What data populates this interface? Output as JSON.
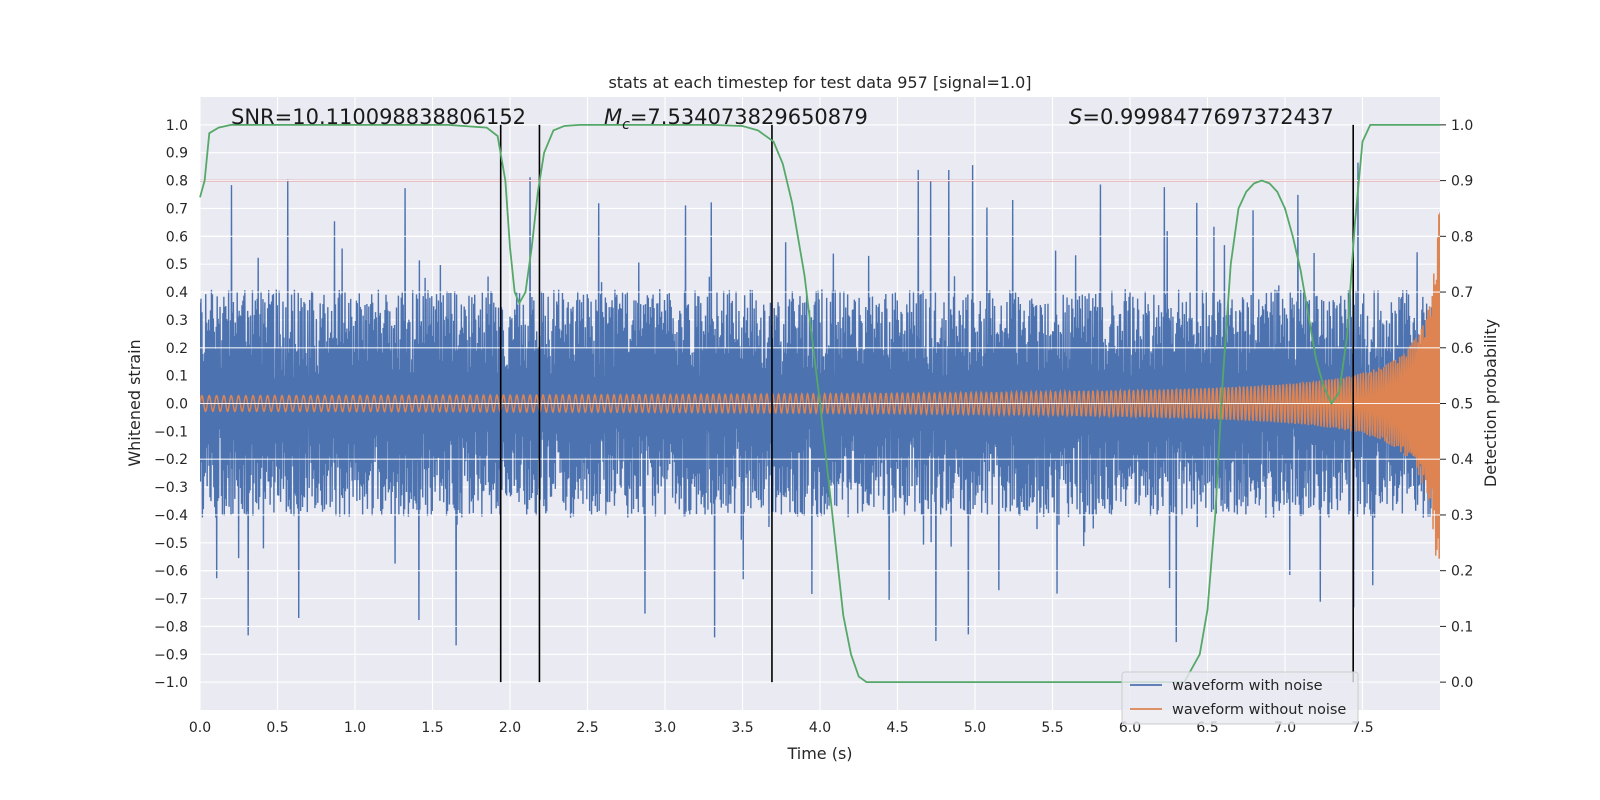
{
  "chart_data": {
    "type": "line",
    "title": "stats at each timestep for test data 957 [signal=1.0]",
    "xlabel": "Time (s)",
    "ylabel": "Whitened strain",
    "y2label": "Detection probability",
    "xlim": [
      0.0,
      8.0
    ],
    "ylim": [
      -1.1,
      1.1
    ],
    "y2lim": [
      -0.05,
      1.05
    ],
    "xticks": [
      0.0,
      0.5,
      1.0,
      1.5,
      2.0,
      2.5,
      3.0,
      3.5,
      4.0,
      4.5,
      5.0,
      5.5,
      6.0,
      6.5,
      7.0,
      7.5
    ],
    "xtick_labels": [
      "0.0",
      "0.5",
      "1.0",
      "1.5",
      "2.0",
      "2.5",
      "3.0",
      "3.5",
      "4.0",
      "4.5",
      "5.0",
      "5.5",
      "6.0",
      "6.5",
      "7.0",
      "7.5"
    ],
    "yticks": [
      1.0,
      0.9,
      0.8,
      0.7,
      0.6,
      0.5,
      0.4,
      0.3,
      0.2,
      0.1,
      0.0,
      -0.1,
      -0.2,
      -0.3,
      -0.4,
      -0.5,
      -0.6,
      -0.7,
      -0.8,
      -0.9,
      -1.0
    ],
    "ytick_labels": [
      "1.0",
      "0.9",
      "0.8",
      "0.7",
      "0.6",
      "0.5",
      "0.4",
      "0.3",
      "0.2",
      "0.1",
      "0.0",
      "−0.1",
      "−0.2",
      "−0.3",
      "−0.4",
      "−0.5",
      "−0.6",
      "−0.7",
      "−0.8",
      "−0.9",
      "−1.0"
    ],
    "y2ticks": [
      1.0,
      0.9,
      0.8,
      0.7,
      0.6,
      0.5,
      0.4,
      0.3,
      0.2,
      0.1,
      0.0
    ],
    "y2tick_labels": [
      "1.0",
      "0.9",
      "0.8",
      "0.7",
      "0.6",
      "0.5",
      "0.4",
      "0.3",
      "0.2",
      "0.1",
      "0.0"
    ],
    "annotations": {
      "snr": "SNR=10.110098838806152",
      "mc_symbol": "M",
      "mc_sub": "c",
      "mc_value": "=7.534073829650879",
      "s_symbol": "S",
      "s_value": "=0.9998477697372437"
    },
    "threshold_line": {
      "y2": 0.9,
      "color": "#c44e52"
    },
    "vertical_markers_s": [
      1.94,
      2.19,
      3.69,
      7.44
    ],
    "series": [
      {
        "name": "waveform with noise",
        "color": "#4c72b0",
        "style": "dense noise, envelope ~0.4, spikes to ~0.85",
        "t_range": [
          0.0,
          8.0
        ]
      },
      {
        "name": "waveform without noise",
        "color": "#dd8452",
        "style": "chirp, amplitude 0.02 rising to ~0.8 at 8.0 s",
        "t_range": [
          0.0,
          8.0
        ]
      },
      {
        "name": "detection probability",
        "axis": "right",
        "color": "#55a868",
        "t": [
          0.0,
          0.03,
          0.06,
          0.12,
          0.2,
          0.4,
          0.8,
          1.2,
          1.6,
          1.85,
          1.92,
          1.97,
          2.0,
          2.03,
          2.06,
          2.1,
          2.14,
          2.18,
          2.22,
          2.28,
          2.35,
          2.45,
          2.55,
          2.7,
          3.0,
          3.3,
          3.5,
          3.6,
          3.7,
          3.76,
          3.82,
          3.9,
          4.0,
          4.08,
          4.15,
          4.2,
          4.25,
          4.3,
          4.4,
          5.0,
          5.6,
          6.1,
          6.35,
          6.45,
          6.5,
          6.55,
          6.6,
          6.65,
          6.7,
          6.75,
          6.8,
          6.85,
          6.9,
          6.95,
          7.0,
          7.05,
          7.1,
          7.15,
          7.2,
          7.25,
          7.3,
          7.35,
          7.4,
          7.45,
          7.5,
          7.55,
          7.6,
          7.7,
          7.8,
          8.0
        ],
        "p": [
          0.87,
          0.9,
          0.985,
          0.995,
          1.0,
          1.0,
          1.0,
          1.0,
          1.0,
          0.995,
          0.98,
          0.9,
          0.78,
          0.7,
          0.68,
          0.7,
          0.78,
          0.88,
          0.95,
          0.99,
          0.998,
          1.0,
          1.0,
          1.0,
          1.0,
          1.0,
          0.998,
          0.99,
          0.97,
          0.93,
          0.86,
          0.73,
          0.5,
          0.3,
          0.12,
          0.05,
          0.01,
          0.0,
          0.0,
          0.0,
          0.0,
          0.0,
          0.0,
          0.05,
          0.13,
          0.3,
          0.55,
          0.75,
          0.85,
          0.88,
          0.895,
          0.9,
          0.895,
          0.88,
          0.85,
          0.8,
          0.74,
          0.66,
          0.58,
          0.53,
          0.5,
          0.52,
          0.62,
          0.82,
          0.97,
          1.0,
          1.0,
          1.0,
          1.0,
          1.0
        ]
      }
    ],
    "legend": {
      "position": "bottom-right",
      "entries": [
        "waveform with noise",
        "waveform without noise"
      ]
    },
    "grid": true
  }
}
